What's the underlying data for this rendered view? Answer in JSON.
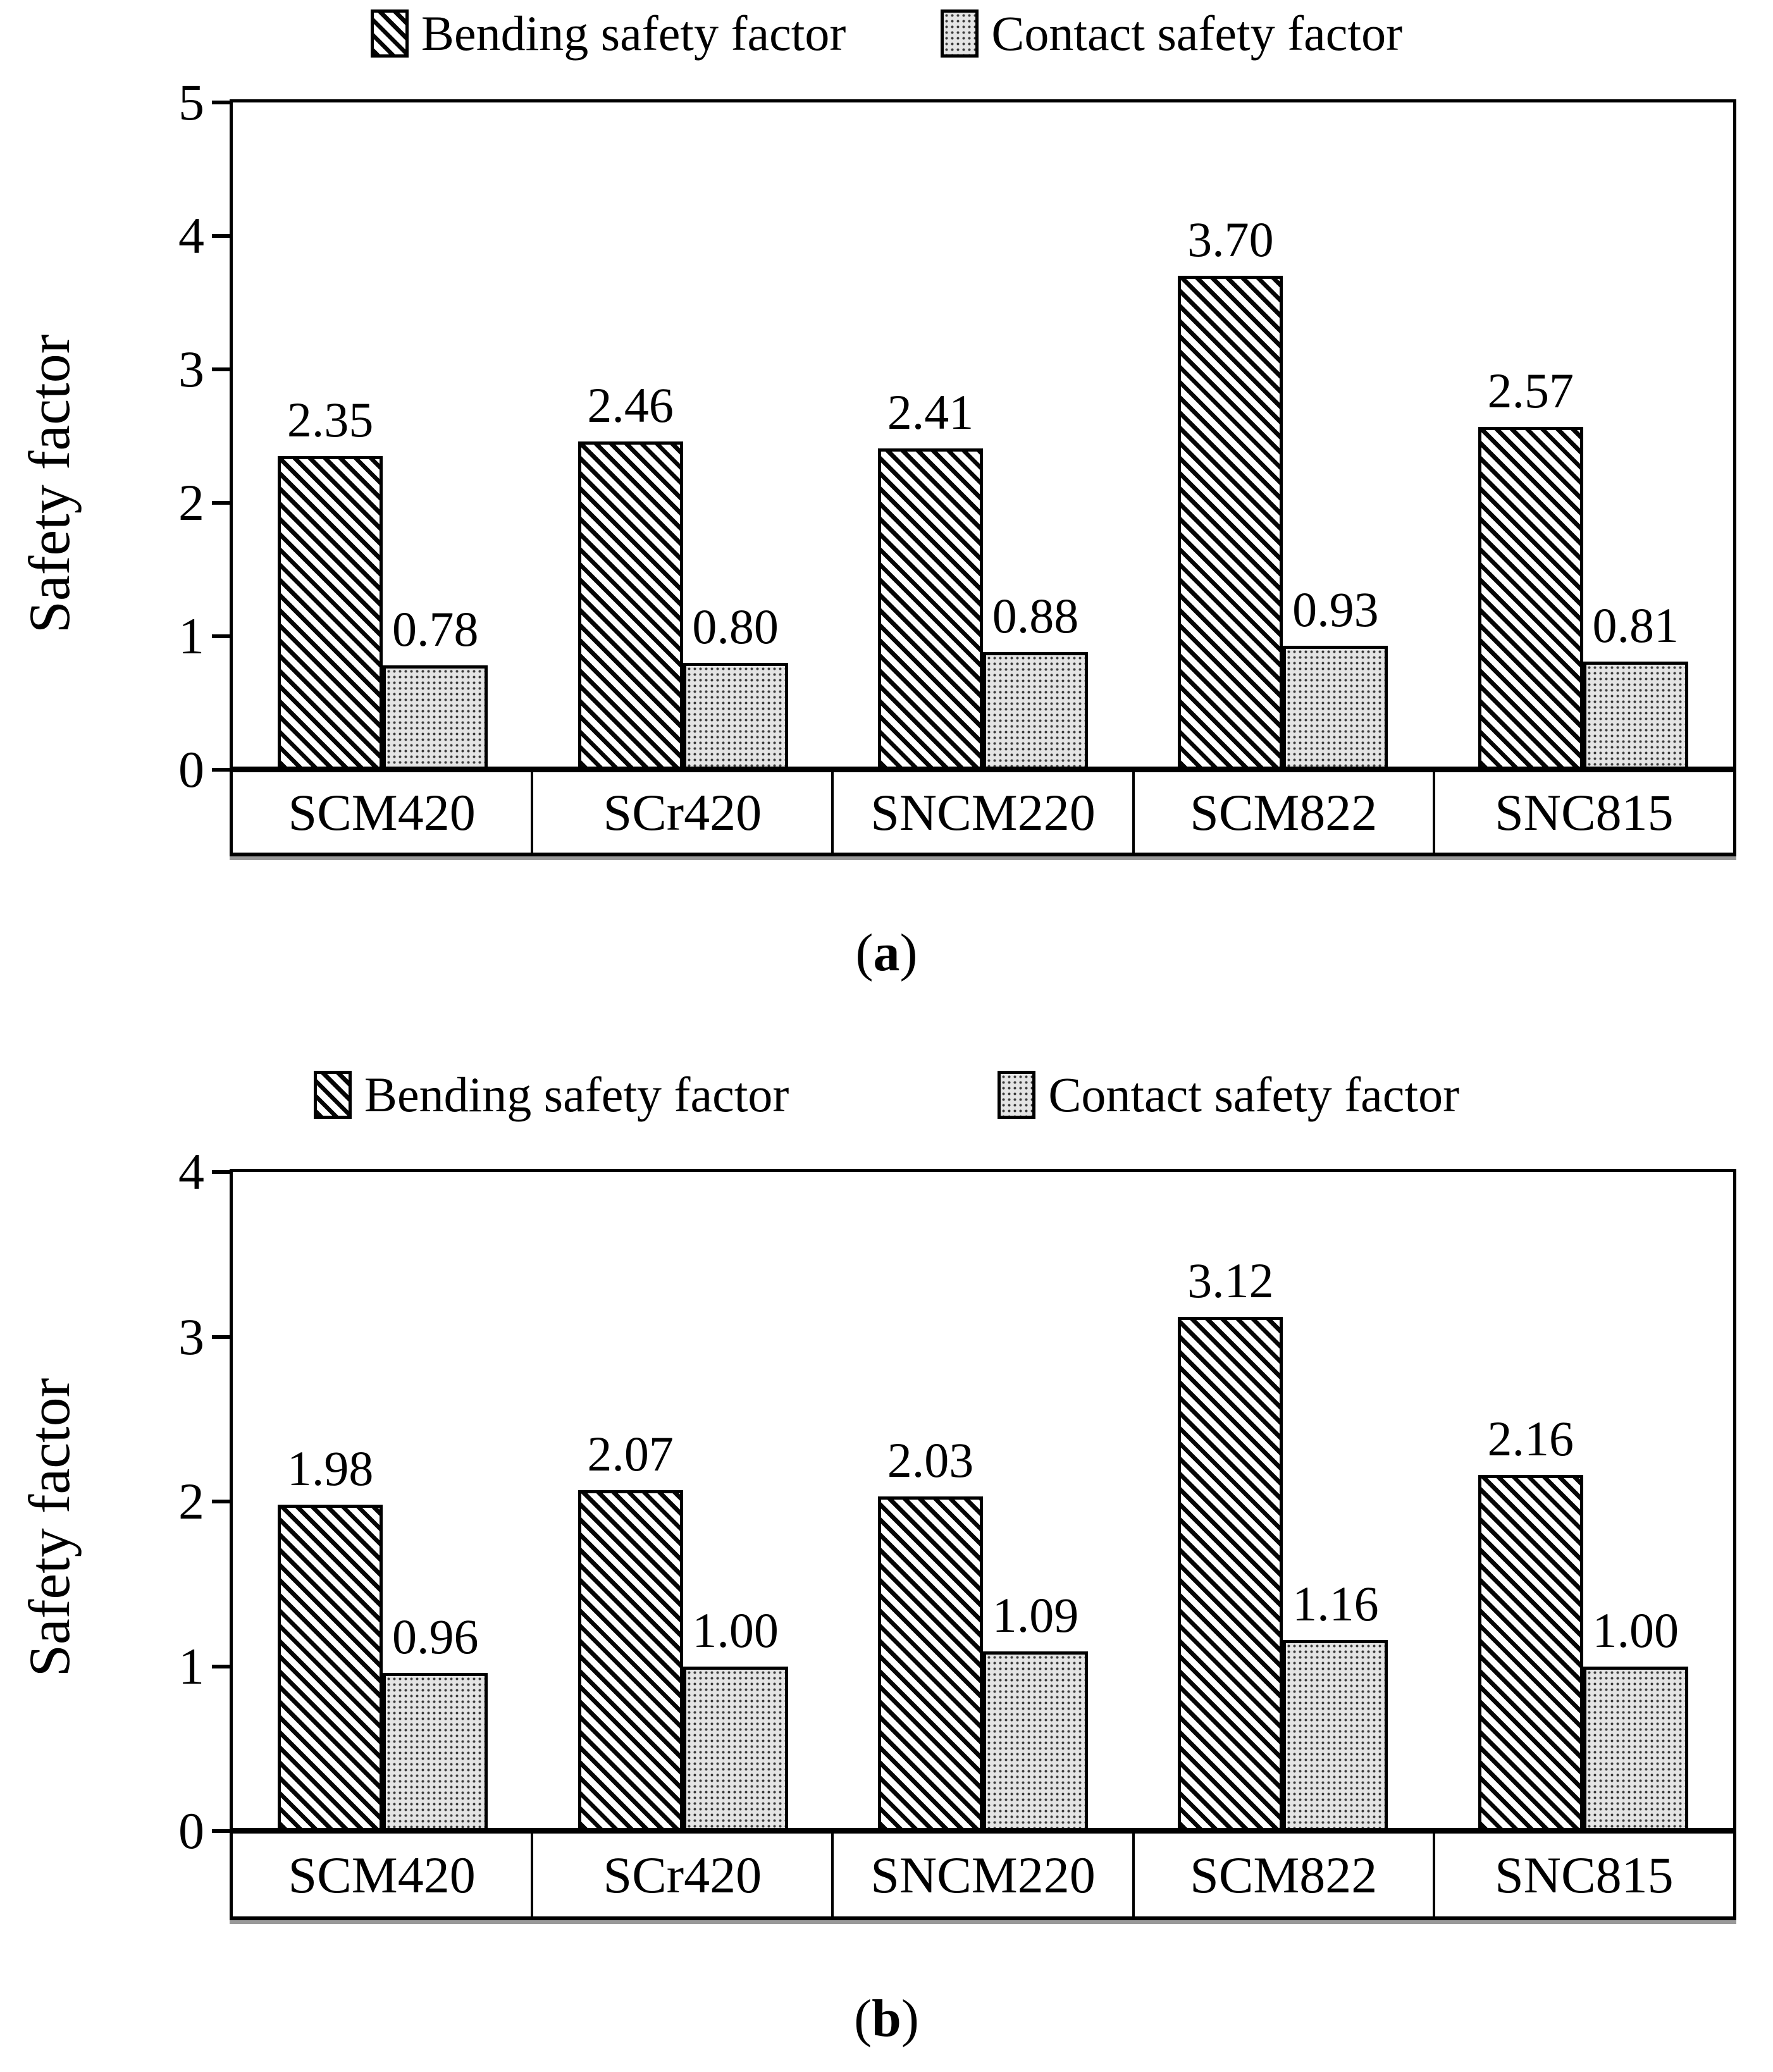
{
  "colors": {
    "ink": "#000000",
    "background": "#ffffff",
    "contact_fill": "#e4e4e4",
    "contact_dot": "#3a3a3a"
  },
  "chart_data": [
    {
      "id": "a",
      "type": "bar",
      "caption": {
        "open": "(",
        "letter": "a",
        "close": ")"
      },
      "ylabel": "Safety factor",
      "xlabel": "",
      "ylim": [
        0,
        5
      ],
      "yticks": [
        5,
        4,
        3,
        2,
        1,
        0
      ],
      "grid": "off",
      "legend_position": "top-center",
      "categories": [
        "SCM420",
        "SCr420",
        "SNCM220",
        "SCM822",
        "SNC815"
      ],
      "series": [
        {
          "name": "Bending safety factor",
          "pattern": "diagonal-hatch",
          "values": [
            2.35,
            2.46,
            2.41,
            3.7,
            2.57
          ],
          "labels": [
            "2.35",
            "2.46",
            "2.41",
            "3.70",
            "2.57"
          ]
        },
        {
          "name": "Contact safety factor",
          "pattern": "dot-grid",
          "values": [
            0.78,
            0.8,
            0.88,
            0.93,
            0.81
          ],
          "labels": [
            "0.78",
            "0.80",
            "0.88",
            "0.93",
            "0.81"
          ]
        }
      ]
    },
    {
      "id": "b",
      "type": "bar",
      "caption": {
        "open": "(",
        "letter": "b",
        "close": ")"
      },
      "ylabel": "Safety factor",
      "xlabel": "",
      "ylim": [
        0,
        4
      ],
      "yticks": [
        4,
        3,
        2,
        1,
        0
      ],
      "grid": "off",
      "legend_position": "top-center",
      "categories": [
        "SCM420",
        "SCr420",
        "SNCM220",
        "SCM822",
        "SNC815"
      ],
      "series": [
        {
          "name": "Bending safety factor",
          "pattern": "diagonal-hatch",
          "values": [
            1.98,
            2.07,
            2.03,
            3.12,
            2.16
          ],
          "labels": [
            "1.98",
            "2.07",
            "2.03",
            "3.12",
            "2.16"
          ]
        },
        {
          "name": "Contact safety factor",
          "pattern": "dot-grid",
          "values": [
            0.96,
            1.0,
            1.09,
            1.16,
            1.0
          ],
          "labels": [
            "0.96",
            "1.00",
            "1.09",
            "1.16",
            "1.00"
          ]
        }
      ]
    }
  ]
}
